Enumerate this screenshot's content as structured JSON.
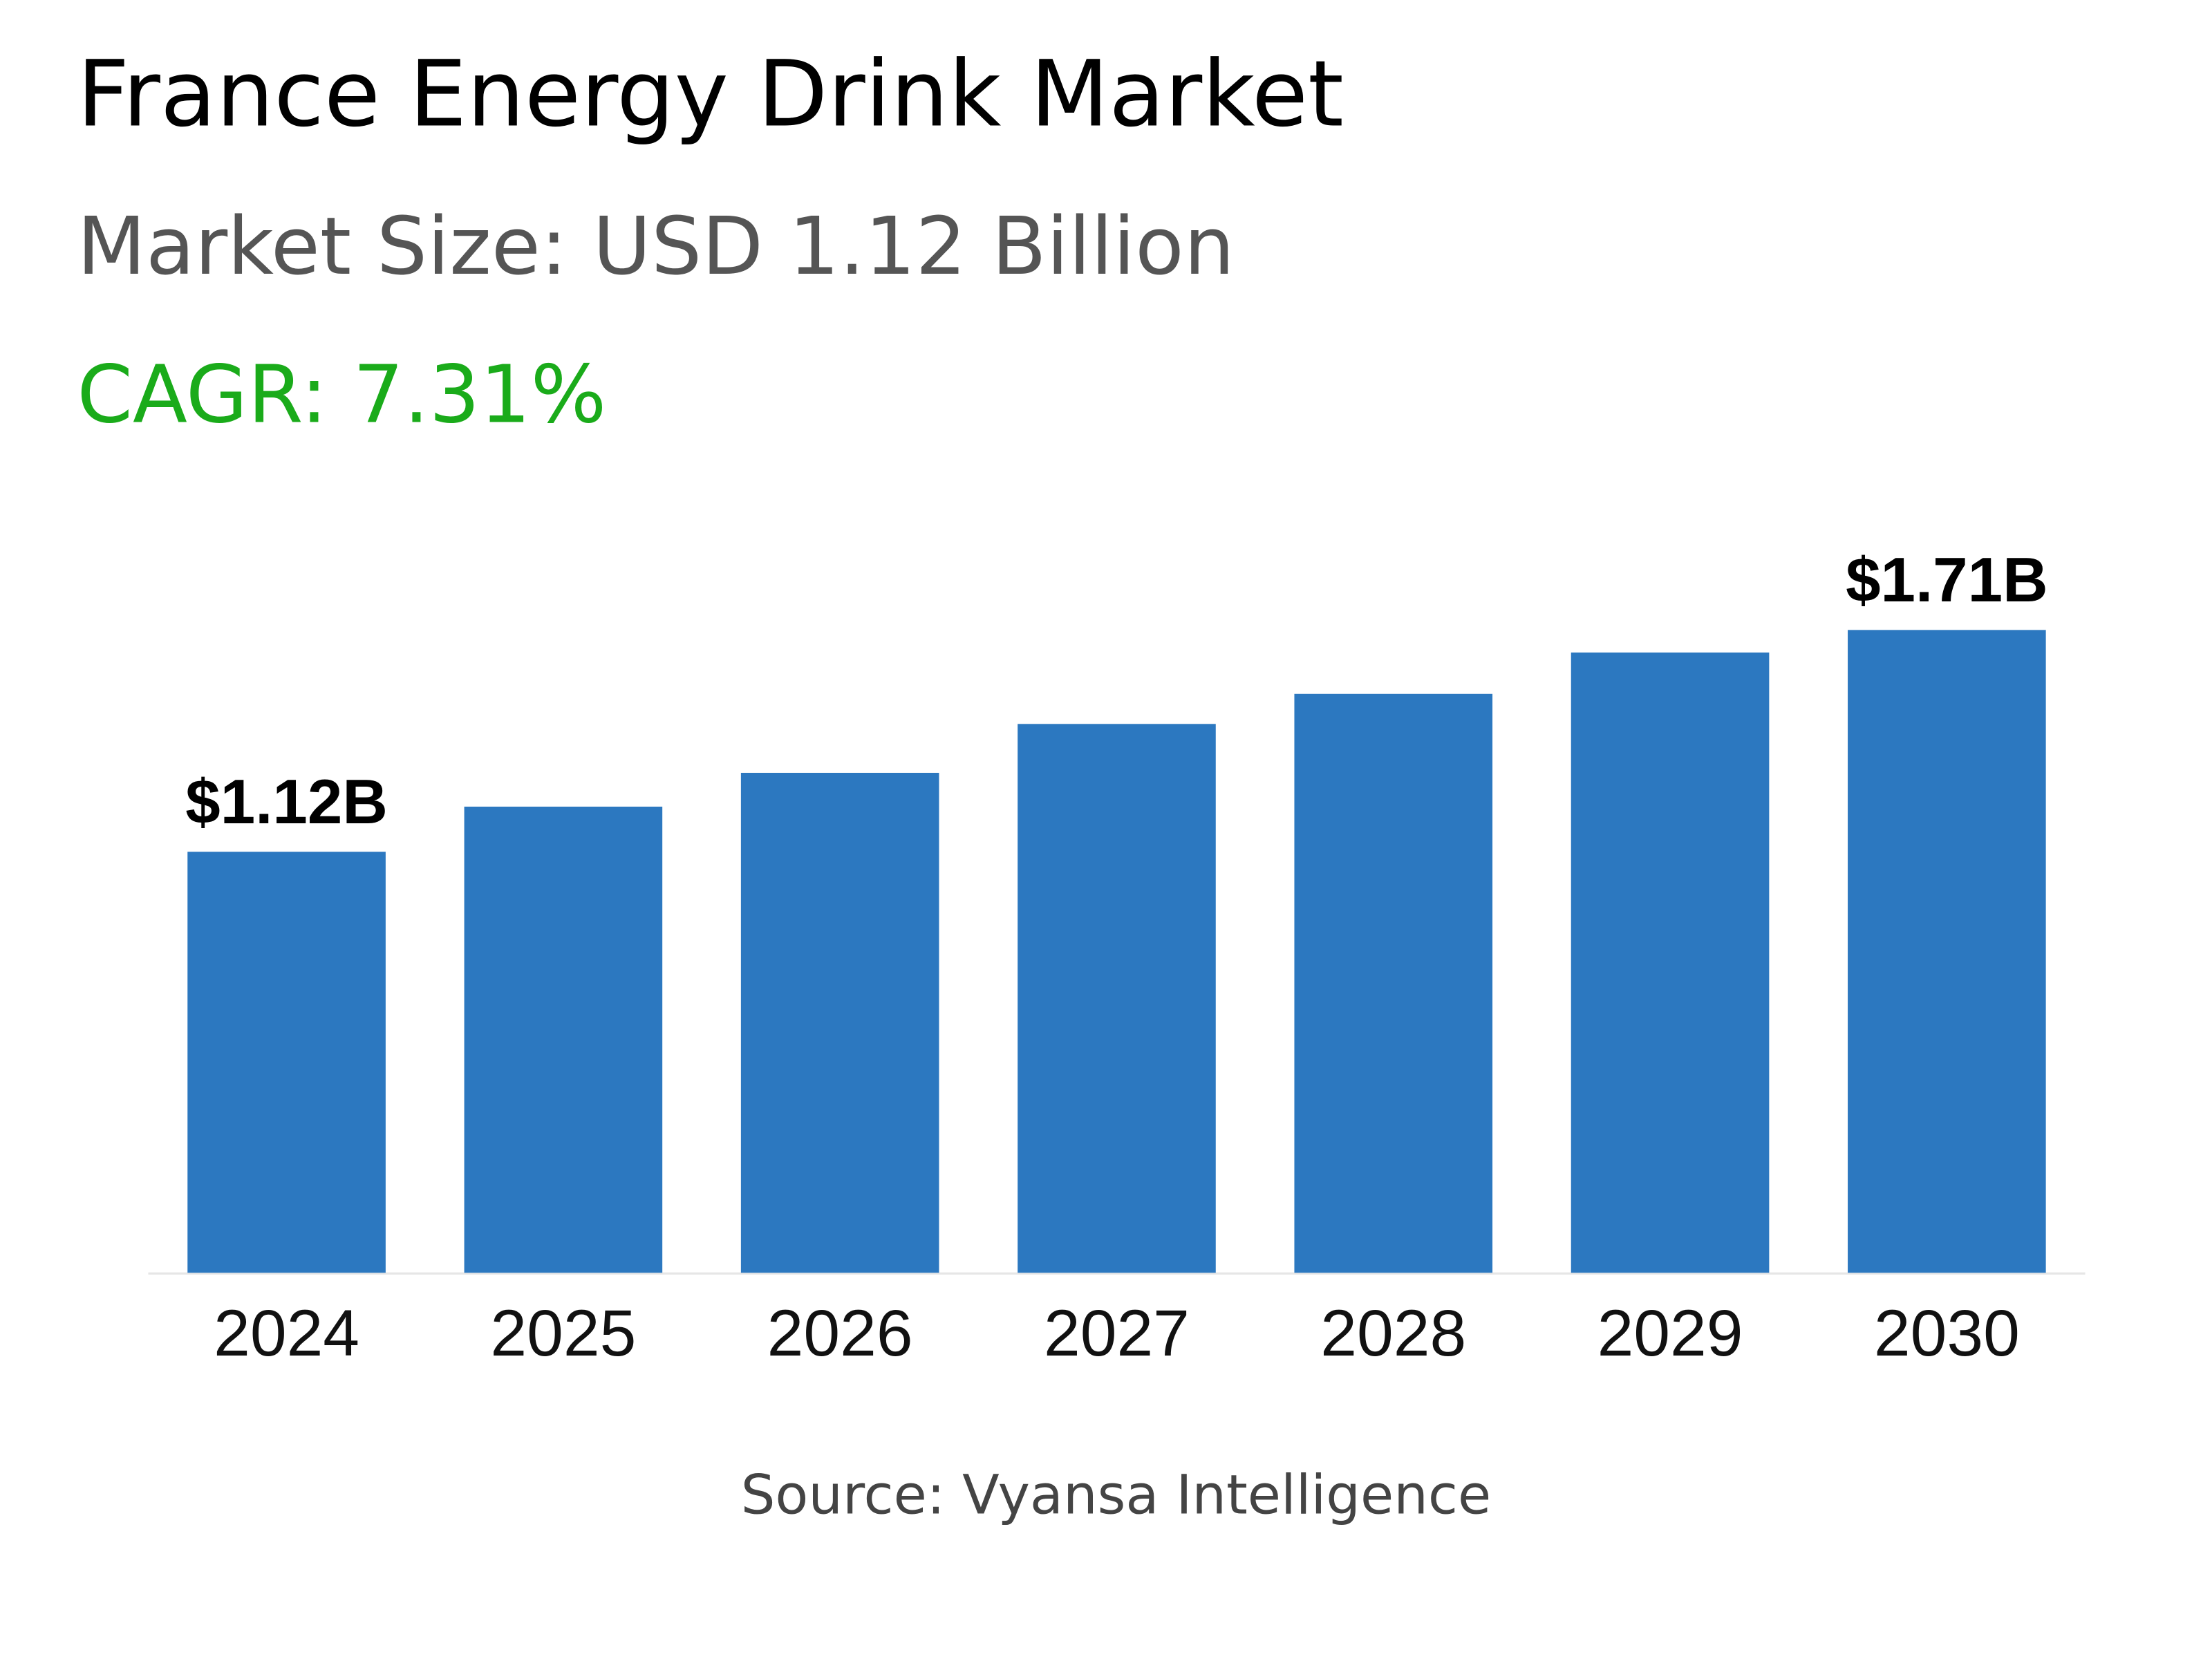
{
  "chart_data": {
    "type": "bar",
    "title": "France Energy Drink Market",
    "subtitle": "Market Size: USD 1.12 Billion",
    "cagr": "CAGR: 7.31%",
    "source": "Source: Vyansa Intelligence",
    "categories": [
      "2024",
      "2025",
      "2026",
      "2027",
      "2028",
      "2029",
      "2030"
    ],
    "values": [
      1.12,
      1.24,
      1.33,
      1.46,
      1.54,
      1.65,
      1.71
    ],
    "value_labels": [
      "$1.12B",
      null,
      null,
      null,
      null,
      null,
      "$1.71B"
    ],
    "color": "#2c78c0"
  }
}
